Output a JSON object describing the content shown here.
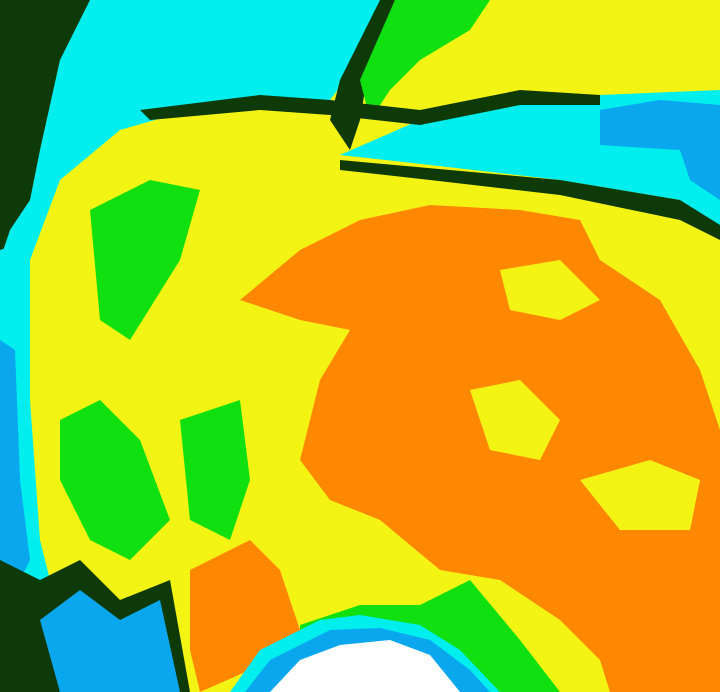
{
  "colors": {
    "dark_green": "#0e3a08",
    "cyan": "#00eeee",
    "blue": "#0aa6ee",
    "green": "#10e010",
    "yellow": "#f4f414",
    "orange": "#ff8800",
    "white": "#ffffff"
  }
}
